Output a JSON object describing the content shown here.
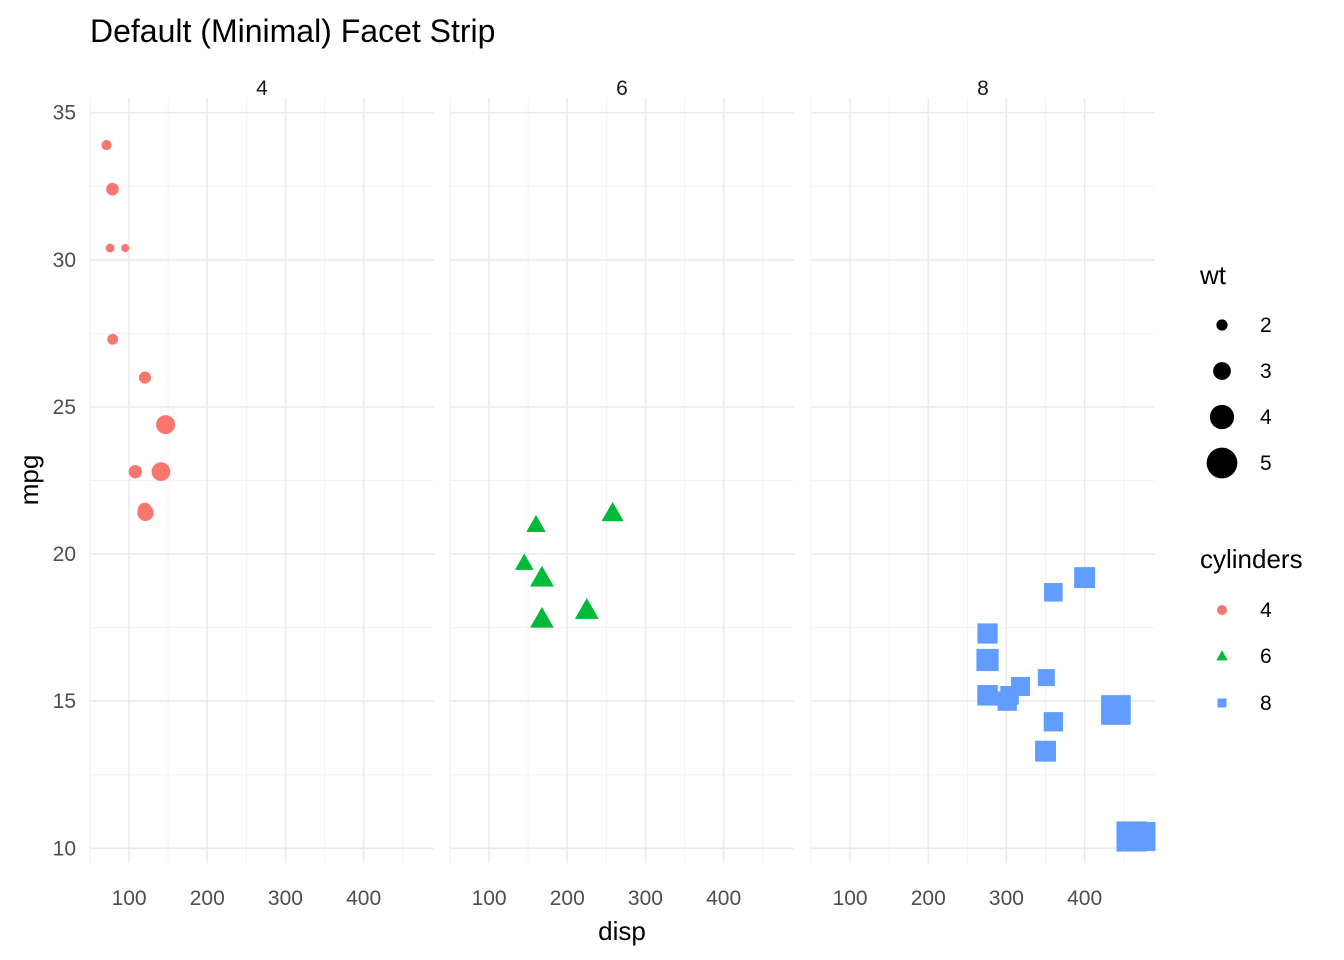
{
  "chart_data": {
    "type": "scatter",
    "title": "Default (Minimal) Facet Strip",
    "xlabel": "disp",
    "ylabel": "mpg",
    "xlim": [
      50,
      490
    ],
    "ylim": [
      9.5,
      35.5
    ],
    "x_ticks": [
      100,
      200,
      300,
      400
    ],
    "y_ticks": [
      10,
      15,
      20,
      25,
      30,
      35
    ],
    "grid": true,
    "facets": [
      {
        "label": "4",
        "color": "#F8766D",
        "shape": "circle",
        "points": [
          {
            "disp": 71.1,
            "mpg": 33.9,
            "wt": 1.835
          },
          {
            "disp": 78.7,
            "mpg": 32.4,
            "wt": 2.2
          },
          {
            "disp": 75.7,
            "mpg": 30.4,
            "wt": 1.615
          },
          {
            "disp": 95.1,
            "mpg": 30.4,
            "wt": 1.513
          },
          {
            "disp": 79.0,
            "mpg": 27.3,
            "wt": 1.935
          },
          {
            "disp": 120.3,
            "mpg": 26.0,
            "wt": 2.14
          },
          {
            "disp": 146.7,
            "mpg": 24.4,
            "wt": 3.19
          },
          {
            "disp": 108.0,
            "mpg": 22.8,
            "wt": 2.32
          },
          {
            "disp": 140.8,
            "mpg": 22.8,
            "wt": 3.15
          },
          {
            "disp": 121.0,
            "mpg": 21.4,
            "wt": 2.78
          },
          {
            "disp": 120.1,
            "mpg": 21.5,
            "wt": 2.465
          }
        ]
      },
      {
        "label": "6",
        "color": "#00BA38",
        "shape": "triangle",
        "points": [
          {
            "disp": 160.0,
            "mpg": 21.0,
            "wt": 2.62
          },
          {
            "disp": 160.0,
            "mpg": 21.0,
            "wt": 2.875
          },
          {
            "disp": 258.0,
            "mpg": 21.4,
            "wt": 3.215
          },
          {
            "disp": 225.0,
            "mpg": 18.1,
            "wt": 3.46
          },
          {
            "disp": 167.6,
            "mpg": 19.2,
            "wt": 3.44
          },
          {
            "disp": 167.6,
            "mpg": 17.8,
            "wt": 3.44
          },
          {
            "disp": 145.0,
            "mpg": 19.7,
            "wt": 2.77
          }
        ]
      },
      {
        "label": "8",
        "color": "#619CFF",
        "shape": "square",
        "points": [
          {
            "disp": 360.0,
            "mpg": 18.7,
            "wt": 3.44
          },
          {
            "disp": 360.0,
            "mpg": 14.3,
            "wt": 3.57
          },
          {
            "disp": 275.8,
            "mpg": 16.4,
            "wt": 4.07
          },
          {
            "disp": 275.8,
            "mpg": 17.3,
            "wt": 3.73
          },
          {
            "disp": 275.8,
            "mpg": 15.2,
            "wt": 3.78
          },
          {
            "disp": 472.0,
            "mpg": 10.4,
            "wt": 5.25
          },
          {
            "disp": 460.0,
            "mpg": 10.4,
            "wt": 5.424
          },
          {
            "disp": 440.0,
            "mpg": 14.7,
            "wt": 5.345
          },
          {
            "disp": 318.0,
            "mpg": 15.5,
            "wt": 3.52
          },
          {
            "disp": 304.0,
            "mpg": 15.2,
            "wt": 3.435
          },
          {
            "disp": 350.0,
            "mpg": 13.3,
            "wt": 3.84
          },
          {
            "disp": 400.0,
            "mpg": 19.2,
            "wt": 3.845
          },
          {
            "disp": 351.0,
            "mpg": 15.8,
            "wt": 3.17
          },
          {
            "disp": 301.0,
            "mpg": 15.0,
            "wt": 3.57
          }
        ]
      }
    ],
    "legends": {
      "position": "right",
      "size": {
        "title": "wt",
        "breaks": [
          2,
          3,
          4,
          5
        ],
        "labels": [
          "2",
          "3",
          "4",
          "5"
        ],
        "color": "#000000"
      },
      "color": {
        "title": "cylinders",
        "labels": [
          "4",
          "6",
          "8"
        ],
        "shapes": [
          "circle",
          "triangle",
          "square"
        ],
        "colors": [
          "#F8766D",
          "#00BA38",
          "#619CFF"
        ]
      }
    }
  }
}
